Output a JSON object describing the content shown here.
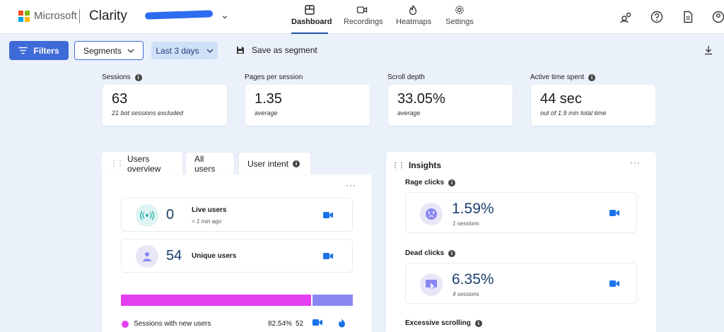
{
  "brand": {
    "company": "Microsoft",
    "app": "Clarity",
    "logo_colors": [
      "#f25022",
      "#7fba00",
      "#00a4ef",
      "#ffb900"
    ]
  },
  "nav": {
    "tabs": [
      {
        "label": "Dashboard",
        "icon": "dashboard-icon",
        "active": true
      },
      {
        "label": "Recordings",
        "icon": "video-icon",
        "active": false
      },
      {
        "label": "Heatmaps",
        "icon": "flame-icon",
        "active": false
      },
      {
        "label": "Settings",
        "icon": "gear-icon",
        "active": false
      }
    ],
    "right_icons": [
      "share-users-icon",
      "help-icon",
      "document-icon",
      "account-icon"
    ]
  },
  "toolbar": {
    "filters_label": "Filters",
    "segments_label": "Segments",
    "date_label": "Last 3 days",
    "save_segment_label": "Save as segment"
  },
  "metrics": [
    {
      "label": "Sessions",
      "info": true,
      "value": "63",
      "sub": "21 bot sessions excluded"
    },
    {
      "label": "Pages per session",
      "info": false,
      "value": "1.35",
      "sub": "average"
    },
    {
      "label": "Scroll depth",
      "info": false,
      "value": "33.05%",
      "sub": "average"
    },
    {
      "label": "Active time spent",
      "info": true,
      "value": "44 sec",
      "sub": "out of 1.9 min total time"
    }
  ],
  "users_overview": {
    "tabs": [
      "Users overview",
      "All users",
      "User intent"
    ],
    "live": {
      "value": "0",
      "label": "Live users",
      "sub": "< 1 min ago"
    },
    "unique": {
      "value": "54",
      "label": "Unique users"
    },
    "bar": {
      "segments": [
        {
          "fraction": 0.8254,
          "color": "#e33ef0"
        },
        {
          "fraction": 0.1746,
          "color": "#8a87f2"
        }
      ]
    },
    "legend": [
      {
        "label": "Sessions with new users",
        "pct": "82.54%",
        "count": "52",
        "color": "#e33ef0"
      }
    ]
  },
  "insights": {
    "title": "Insights",
    "items": [
      {
        "label": "Rage clicks",
        "value": "1.59%",
        "sub": "1 sessions",
        "icon": "angry-face-icon"
      },
      {
        "label": "Dead clicks",
        "value": "6.35%",
        "sub": "4 sessions",
        "icon": "dead-click-icon"
      },
      {
        "label": "Excessive scrolling",
        "value": "",
        "sub": "",
        "icon": ""
      }
    ]
  },
  "colors": {
    "accent": "#3f6bd8",
    "camera": "#1a73e8",
    "value_text": "#1a3f6d"
  }
}
